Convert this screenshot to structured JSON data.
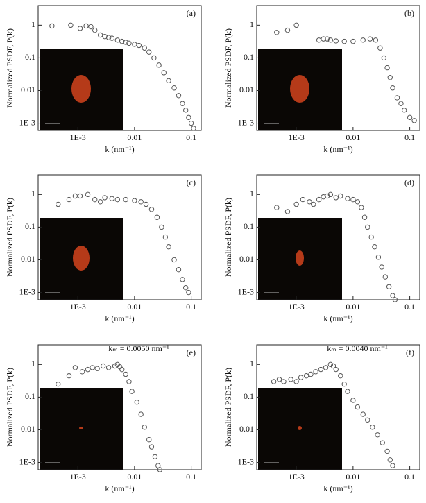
{
  "chart_data": [
    {
      "type": "scatter",
      "panel_label": "(a)",
      "xlabel": "k (nm⁻¹)",
      "ylabel": "Normalized PSDF, P(k)",
      "x_scale": "log",
      "y_scale": "log",
      "marker_color": "#555555",
      "xlim": [
        0.0002,
        0.15
      ],
      "ylim": [
        0.0006,
        4
      ],
      "xticks": [
        {
          "value": 0.001,
          "label": "1E-3"
        },
        0.01,
        0.1
      ],
      "yticks": [
        {
          "value": 0.001,
          "label": "1E-3"
        },
        0.01,
        0.1,
        1
      ],
      "x": [
        0.00035,
        0.00075,
        0.0011,
        0.0014,
        0.0017,
        0.002,
        0.0025,
        0.003,
        0.0035,
        0.004,
        0.005,
        0.006,
        0.007,
        0.008,
        0.01,
        0.012,
        0.015,
        0.018,
        0.022,
        0.027,
        0.033,
        0.04,
        0.05,
        0.06,
        0.07,
        0.08,
        0.09,
        0.1,
        0.11
      ],
      "values": [
        0.95,
        1.0,
        0.8,
        0.95,
        0.9,
        0.7,
        0.5,
        0.45,
        0.42,
        0.4,
        0.35,
        0.32,
        0.3,
        0.28,
        0.26,
        0.24,
        0.2,
        0.15,
        0.1,
        0.06,
        0.035,
        0.02,
        0.012,
        0.007,
        0.004,
        0.0025,
        0.0015,
        0.001,
        0.0007
      ]
    },
    {
      "type": "scatter",
      "panel_label": "(b)",
      "xlabel": "k (nm⁻¹)",
      "ylabel": "Normalized PSDF, P(k)",
      "x_scale": "log",
      "y_scale": "log",
      "marker_color": "#555555",
      "xlim": [
        0.0002,
        0.15
      ],
      "ylim": [
        0.0006,
        4
      ],
      "xticks": [
        {
          "value": 0.001,
          "label": "1E-3"
        },
        0.01,
        0.1
      ],
      "yticks": [
        {
          "value": 0.001,
          "label": "1E-3"
        },
        0.01,
        0.1,
        1
      ],
      "x": [
        0.00045,
        0.0007,
        0.001,
        0.0025,
        0.003,
        0.0035,
        0.004,
        0.005,
        0.007,
        0.01,
        0.015,
        0.02,
        0.025,
        0.03,
        0.035,
        0.04,
        0.045,
        0.05,
        0.06,
        0.07,
        0.08,
        0.1,
        0.12
      ],
      "values": [
        0.6,
        0.7,
        1.0,
        0.35,
        0.38,
        0.38,
        0.35,
        0.33,
        0.32,
        0.32,
        0.35,
        0.38,
        0.35,
        0.2,
        0.1,
        0.05,
        0.025,
        0.012,
        0.006,
        0.004,
        0.0025,
        0.0015,
        0.0012
      ]
    },
    {
      "type": "scatter",
      "panel_label": "(c)",
      "xlabel": "k (nm⁻¹)",
      "ylabel": "Normalized PSDF, P(k)",
      "x_scale": "log",
      "y_scale": "log",
      "marker_color": "#555555",
      "xlim": [
        0.0002,
        0.15
      ],
      "ylim": [
        0.0006,
        4
      ],
      "xticks": [
        {
          "value": 0.001,
          "label": "1E-3"
        },
        0.01,
        0.1
      ],
      "yticks": [
        {
          "value": 0.001,
          "label": "1E-3"
        },
        0.01,
        0.1,
        1
      ],
      "x": [
        0.00045,
        0.0007,
        0.0009,
        0.0011,
        0.0015,
        0.002,
        0.0025,
        0.003,
        0.004,
        0.005,
        0.007,
        0.01,
        0.013,
        0.016,
        0.02,
        0.025,
        0.03,
        0.035,
        0.04,
        0.05,
        0.06,
        0.07,
        0.08,
        0.09
      ],
      "values": [
        0.5,
        0.7,
        0.9,
        0.9,
        1.0,
        0.7,
        0.6,
        0.8,
        0.75,
        0.7,
        0.7,
        0.65,
        0.6,
        0.5,
        0.35,
        0.2,
        0.1,
        0.05,
        0.025,
        0.01,
        0.005,
        0.0025,
        0.0014,
        0.001
      ]
    },
    {
      "type": "scatter",
      "panel_label": "(d)",
      "xlabel": "k (nm⁻¹)",
      "ylabel": "Normalized PSDF, P(k)",
      "x_scale": "log",
      "y_scale": "log",
      "marker_color": "#555555",
      "xlim": [
        0.0002,
        0.15
      ],
      "ylim": [
        0.0006,
        4
      ],
      "xticks": [
        {
          "value": 0.001,
          "label": "1E-3"
        },
        0.01,
        0.1
      ],
      "yticks": [
        {
          "value": 0.001,
          "label": "1E-3"
        },
        0.01,
        0.1,
        1
      ],
      "x": [
        0.00045,
        0.0007,
        0.001,
        0.0013,
        0.0017,
        0.002,
        0.0025,
        0.003,
        0.0035,
        0.004,
        0.005,
        0.006,
        0.008,
        0.01,
        0.012,
        0.014,
        0.016,
        0.018,
        0.021,
        0.024,
        0.028,
        0.032,
        0.037,
        0.043,
        0.05,
        0.055
      ],
      "values": [
        0.4,
        0.3,
        0.5,
        0.7,
        0.6,
        0.5,
        0.7,
        0.85,
        0.9,
        1.0,
        0.8,
        0.9,
        0.75,
        0.7,
        0.6,
        0.4,
        0.2,
        0.1,
        0.05,
        0.025,
        0.012,
        0.006,
        0.003,
        0.0015,
        0.0008,
        0.0006
      ]
    },
    {
      "type": "scatter",
      "panel_label": "(e)",
      "annotation": "kₘ = 0.0050 nm⁻¹",
      "xlabel": "k (nm⁻¹)",
      "ylabel": "Normalized PSDF, P(k)",
      "x_scale": "log",
      "y_scale": "log",
      "marker_color": "#555555",
      "xlim": [
        0.0002,
        0.15
      ],
      "ylim": [
        0.0006,
        4
      ],
      "xticks": [
        {
          "value": 0.001,
          "label": "1E-3"
        },
        0.01,
        0.1
      ],
      "yticks": [
        {
          "value": 0.001,
          "label": "1E-3"
        },
        0.01,
        0.1,
        1
      ],
      "x": [
        0.00045,
        0.0007,
        0.0009,
        0.0012,
        0.0015,
        0.0018,
        0.0022,
        0.0028,
        0.0035,
        0.0045,
        0.005,
        0.0055,
        0.006,
        0.007,
        0.008,
        0.009,
        0.011,
        0.013,
        0.015,
        0.018,
        0.02,
        0.023,
        0.026,
        0.028
      ],
      "values": [
        0.25,
        0.45,
        0.8,
        0.6,
        0.7,
        0.8,
        0.75,
        0.9,
        0.8,
        0.9,
        1.0,
        0.85,
        0.7,
        0.5,
        0.3,
        0.15,
        0.07,
        0.03,
        0.012,
        0.005,
        0.003,
        0.0015,
        0.0008,
        0.0006
      ]
    },
    {
      "type": "scatter",
      "panel_label": "(f)",
      "annotation": "kₘ = 0.0040 nm⁻¹",
      "xlabel": "k (nm⁻¹)",
      "ylabel": "Normalized PSDF, P(k)",
      "x_scale": "log",
      "y_scale": "log",
      "marker_color": "#555555",
      "xlim": [
        0.0002,
        0.15
      ],
      "ylim": [
        0.0006,
        4
      ],
      "xticks": [
        {
          "value": 0.001,
          "label": "1E-3"
        },
        0.01,
        0.1
      ],
      "yticks": [
        {
          "value": 0.001,
          "label": "1E-3"
        },
        0.01,
        0.1,
        1
      ],
      "x": [
        0.0004,
        0.0005,
        0.0006,
        0.0008,
        0.001,
        0.0012,
        0.0015,
        0.0018,
        0.0022,
        0.0027,
        0.0033,
        0.004,
        0.0045,
        0.005,
        0.006,
        0.007,
        0.008,
        0.01,
        0.012,
        0.015,
        0.018,
        0.022,
        0.027,
        0.033,
        0.04,
        0.045,
        0.05
      ],
      "values": [
        0.3,
        0.35,
        0.3,
        0.35,
        0.3,
        0.4,
        0.45,
        0.5,
        0.6,
        0.7,
        0.8,
        1.0,
        0.9,
        0.7,
        0.45,
        0.25,
        0.15,
        0.08,
        0.05,
        0.03,
        0.02,
        0.012,
        0.007,
        0.004,
        0.0022,
        0.0012,
        0.0008
      ]
    }
  ]
}
